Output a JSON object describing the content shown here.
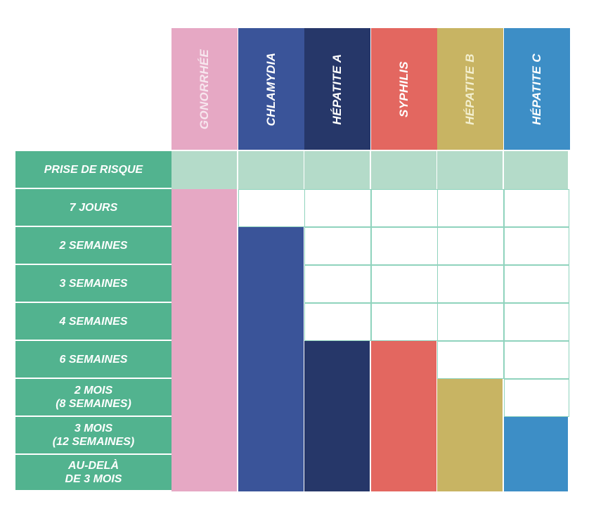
{
  "chart_data": {
    "type": "table",
    "title": "",
    "columns": [
      {
        "label": "GONORRHÉE",
        "color": "#e6a8c4",
        "start_row": 1
      },
      {
        "label": "CHLAMYDIA",
        "color": "#3a5499",
        "start_row": 2
      },
      {
        "label": "HÉPATITE A",
        "color": "#263769",
        "start_row": 5
      },
      {
        "label": "SYPHILIS",
        "color": "#e36760",
        "start_row": 5
      },
      {
        "label": "HÉPATITE B",
        "color": "#c8b463",
        "start_row": 6
      },
      {
        "label": "HÉPATITE C",
        "color": "#3d8ec6",
        "start_row": 7
      }
    ],
    "rows": [
      "PRISE DE RISQUE",
      "7 JOURS",
      "2 SEMAINES",
      "3 SEMAINES",
      "4 SEMAINES",
      "6 SEMAINES",
      "2 MOIS\n(8 SEMAINES)",
      "3 MOIS\n(12 SEMAINES)",
      "AU-DELÀ\nDE 3 MOIS"
    ],
    "risk_row_color": "#b4dbc9",
    "row_label_color": "#52b38f",
    "empty_cell_color": "#ffffff",
    "grid_line_color": "#8fd3bd"
  }
}
